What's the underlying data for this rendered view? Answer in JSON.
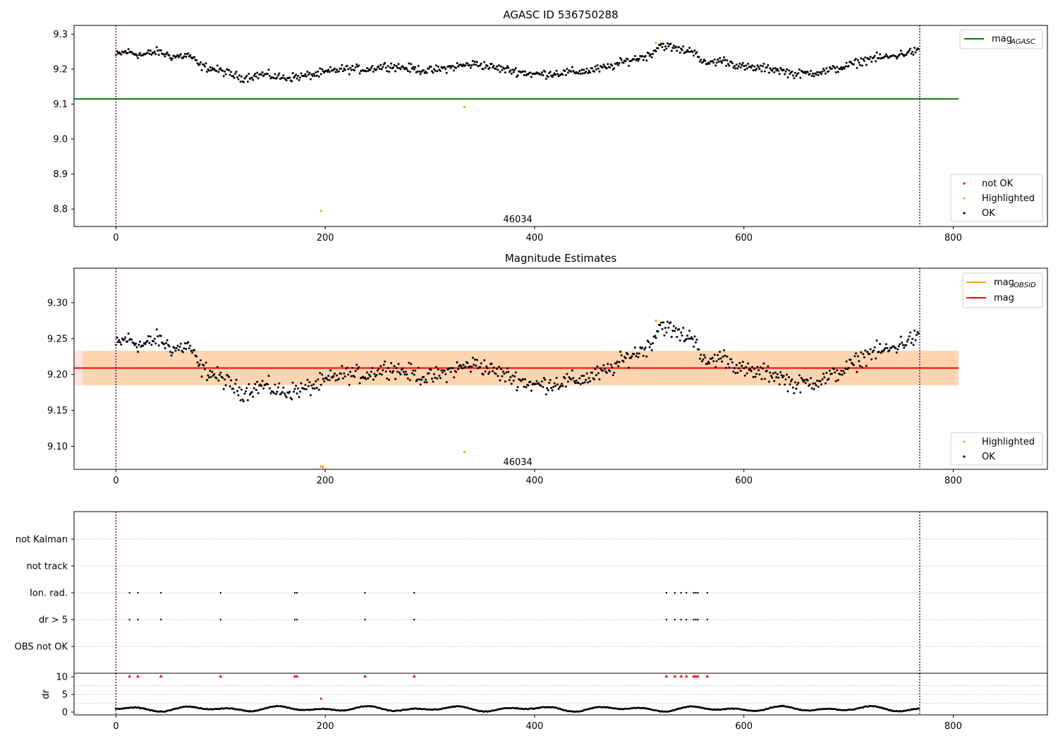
{
  "chart_data": [
    {
      "type": "scatter",
      "title": "AGASC ID 536750288",
      "xlim": [
        -40,
        890
      ],
      "ylim": [
        8.75,
        9.325
      ],
      "xticks": [
        0,
        200,
        400,
        600,
        800
      ],
      "yticks": [
        8.8,
        8.9,
        9.0,
        9.1,
        9.2,
        9.3
      ],
      "yticklabels": [
        "8.8",
        "8.9",
        "9.0",
        "9.1",
        "9.2",
        "9.3"
      ],
      "vlines": [
        0,
        768
      ],
      "vline_color": "#800080",
      "hline": {
        "name": "mag",
        "name_sub": "AGASC",
        "y": 9.115,
        "x_range": [
          -40,
          805
        ],
        "color": "#008000"
      },
      "annotation": {
        "text": "46034",
        "x": 384,
        "y": 8.77
      },
      "legend_lines": [
        {
          "label": "mag",
          "sub": "AGASC",
          "color": "#008000"
        }
      ],
      "legend_points": [
        {
          "label": "not OK",
          "color": "#ff0000"
        },
        {
          "label": "Highlighted",
          "color": "#ffa500"
        },
        {
          "label": "OK",
          "color": "#000000"
        }
      ],
      "highlighted_points": [
        [
          196,
          8.795
        ],
        [
          333,
          9.092
        ],
        [
          516,
          9.275
        ]
      ],
      "series_model": {
        "name": "OK",
        "n": 768,
        "nodes": [
          [
            0,
            9.24
          ],
          [
            10,
            9.25
          ],
          [
            25,
            9.24
          ],
          [
            40,
            9.25
          ],
          [
            55,
            9.235
          ],
          [
            70,
            9.24
          ],
          [
            80,
            9.21
          ],
          [
            100,
            9.195
          ],
          [
            120,
            9.175
          ],
          [
            140,
            9.185
          ],
          [
            160,
            9.175
          ],
          [
            180,
            9.18
          ],
          [
            200,
            9.19
          ],
          [
            215,
            9.2
          ],
          [
            240,
            9.2
          ],
          [
            260,
            9.21
          ],
          [
            300,
            9.195
          ],
          [
            330,
            9.21
          ],
          [
            345,
            9.215
          ],
          [
            360,
            9.205
          ],
          [
            380,
            9.195
          ],
          [
            400,
            9.185
          ],
          [
            430,
            9.19
          ],
          [
            450,
            9.195
          ],
          [
            470,
            9.205
          ],
          [
            490,
            9.225
          ],
          [
            510,
            9.24
          ],
          [
            520,
            9.27
          ],
          [
            540,
            9.255
          ],
          [
            555,
            9.25
          ],
          [
            560,
            9.215
          ],
          [
            580,
            9.225
          ],
          [
            600,
            9.205
          ],
          [
            630,
            9.2
          ],
          [
            650,
            9.185
          ],
          [
            680,
            9.195
          ],
          [
            700,
            9.21
          ],
          [
            720,
            9.23
          ],
          [
            740,
            9.235
          ],
          [
            760,
            9.25
          ],
          [
            768,
            9.25
          ]
        ]
      }
    },
    {
      "type": "scatter",
      "title": "Magnitude Estimates",
      "xlim": [
        -40,
        890
      ],
      "ylim": [
        9.068,
        9.348
      ],
      "xticks": [
        0,
        200,
        400,
        600,
        800
      ],
      "yticks": [
        9.1,
        9.15,
        9.2,
        9.25,
        9.3
      ],
      "yticklabels": [
        "9.10",
        "9.15",
        "9.20",
        "9.25",
        "9.30"
      ],
      "vlines": [
        0,
        768
      ],
      "hline": {
        "name": "mag",
        "y": 9.209,
        "x_range": [
          -40,
          805
        ],
        "color": "#ff0000"
      },
      "band": {
        "y_range": [
          9.185,
          9.233
        ],
        "x_range": [
          -40,
          805
        ],
        "color": "#ff9090",
        "opacity": 0.25
      },
      "band2": {
        "y_range": [
          9.185,
          9.233
        ],
        "x_range": [
          -40,
          805
        ],
        "color": "#ffa500",
        "opacity": 0.22
      },
      "annotation": {
        "text": "46034",
        "x": 384,
        "y": 9.078
      },
      "legend_lines": [
        {
          "label": "mag",
          "sub": "OBSID",
          "color": "#ffa500"
        },
        {
          "label": "mag",
          "color": "#ff0000"
        }
      ],
      "legend_points": [
        {
          "label": "Highlighted",
          "color": "#ffa500"
        },
        {
          "label": "OK",
          "color": "#000000"
        }
      ],
      "highlighted_points": [
        [
          196,
          9.072
        ],
        [
          198,
          9.071
        ],
        [
          333,
          9.092
        ],
        [
          516,
          9.275
        ]
      ]
    },
    {
      "type": "scatter",
      "xlim": [
        -40,
        890
      ],
      "xticks": [
        0,
        200,
        400,
        600,
        800
      ],
      "flag_rows": [
        "not Kalman",
        "not track",
        "Ion. rad.",
        "dr > 5",
        "OBS not OK"
      ],
      "flag_x": [
        13,
        21,
        43,
        100,
        171,
        173,
        238,
        285,
        526,
        534,
        540,
        545,
        552,
        554,
        556,
        565
      ],
      "flag_rows_marked": [
        "Ion. rad.",
        "dr > 5"
      ],
      "dr_axis": {
        "ylabel": "dr",
        "ylim": [
          -0.8,
          11
        ],
        "yticks": [
          0,
          5,
          10
        ],
        "yticklabels": [
          "0",
          "5",
          "10"
        ],
        "clip_value": 10
      },
      "dr_red_points": [
        [
          196,
          3.8
        ]
      ]
    }
  ]
}
